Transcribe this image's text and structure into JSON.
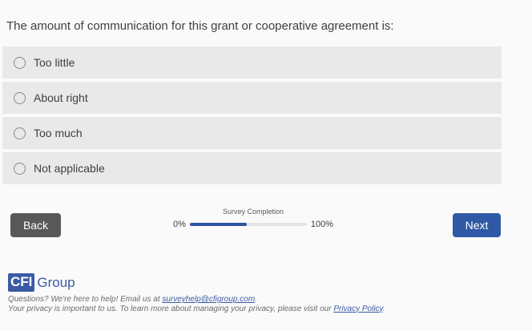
{
  "question": "The amount of communication for this grant or cooperative agreement is:",
  "options": [
    {
      "label": "Too little"
    },
    {
      "label": "About right"
    },
    {
      "label": "Too much"
    },
    {
      "label": "Not applicable"
    }
  ],
  "navigation": {
    "back": "Back",
    "next": "Next"
  },
  "progress": {
    "title": "Survey Completion",
    "start_label": "0%",
    "end_label": "100%",
    "fill_percent": "49",
    "fill_style": "width:49%"
  },
  "footer": {
    "logo_cfi": "CFI",
    "logo_group": "Group",
    "line1_prefix": "Questions? We're here to help! Email us at ",
    "line1_link": "surveyhelp@cfigroup.com",
    "line1_suffix": ".",
    "line2_prefix": "Your privacy is important to us. To learn more about managing your privacy, please visit our ",
    "line2_link": "Privacy Policy",
    "line2_suffix": "."
  },
  "colors": {
    "accent_blue": "#2e5aa5",
    "logo_blue": "#3b5aa5",
    "option_gray": "#e9e9e9",
    "back_gray": "#58585a",
    "progress_fill": "#2e55a0",
    "progress_track": "#e4e4e4",
    "page_background": "#fafafa"
  }
}
